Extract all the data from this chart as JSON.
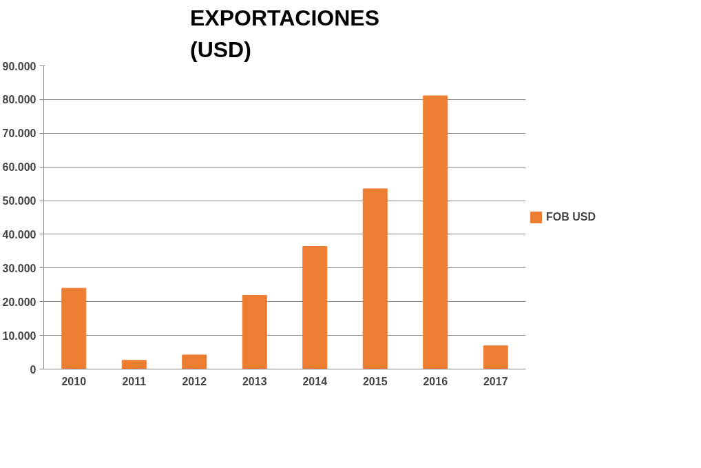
{
  "chart_data": {
    "type": "bar",
    "title": "EXPORTACIONES\n(USD)",
    "categories": [
      "2010",
      "2011",
      "2012",
      "2013",
      "2014",
      "2015",
      "2016",
      "2017"
    ],
    "series": [
      {
        "name": "FOB USD",
        "color": "#ed7d31",
        "values": [
          24000,
          2600,
          4200,
          21900,
          36400,
          53500,
          81100,
          6900
        ]
      }
    ],
    "ylim": [
      0,
      90000
    ],
    "yticks": [
      {
        "value": 0,
        "label": "0"
      },
      {
        "value": 10000,
        "label": "10.000"
      },
      {
        "value": 20000,
        "label": "20.000"
      },
      {
        "value": 30000,
        "label": "30.000"
      },
      {
        "value": 40000,
        "label": "40.000"
      },
      {
        "value": 50000,
        "label": "50.000"
      },
      {
        "value": 60000,
        "label": "60.000"
      },
      {
        "value": 70000,
        "label": "70.000"
      },
      {
        "value": 80000,
        "label": "80.000"
      },
      {
        "value": 90000,
        "label": "90.000"
      }
    ],
    "grid": "y",
    "legend": "right"
  }
}
